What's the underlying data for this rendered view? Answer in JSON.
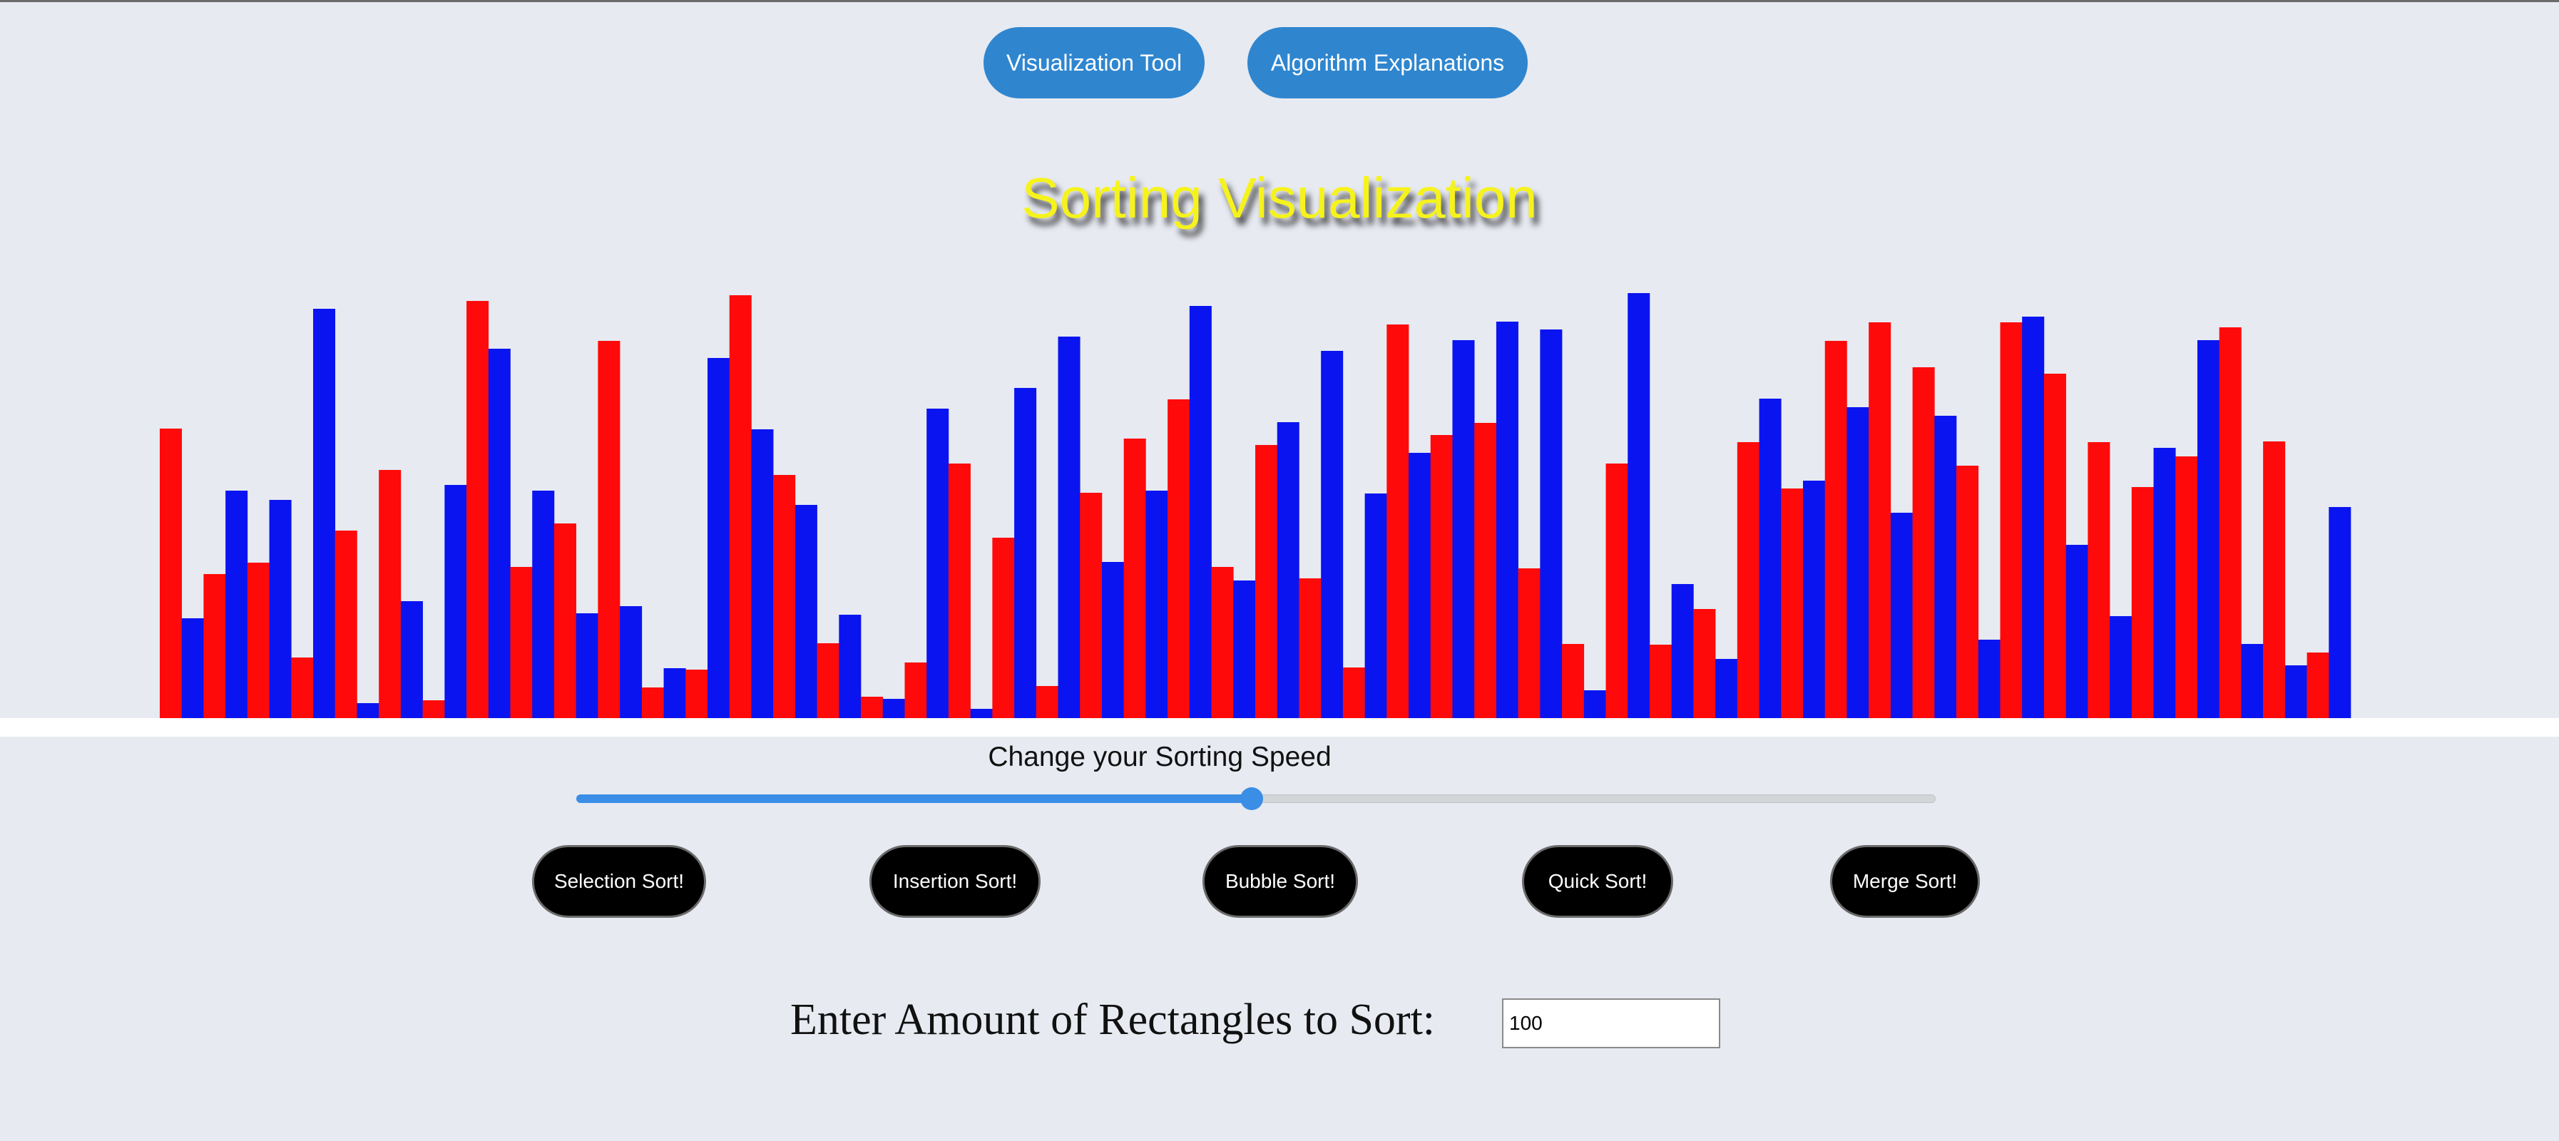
{
  "nav": {
    "visualization_tool": "Visualization Tool",
    "algorithm_explanations": "Algorithm Explanations"
  },
  "title": "Sorting Visualization",
  "speed": {
    "label": "Change your Sorting Speed",
    "value_fraction": 0.497
  },
  "algorithms": {
    "selection": "Selection Sort!",
    "insertion": "Insertion Sort!",
    "bubble": "Bubble Sort!",
    "quick": "Quick Sort!",
    "merge": "Merge Sort!"
  },
  "amount": {
    "label": "Enter Amount of Rectangles to Sort:",
    "value": "100"
  },
  "colors": {
    "background": "#e7eaf1",
    "bar_red": "#ff0a0a",
    "bar_blue": "#0a14f0",
    "button_blue": "#2f86cf",
    "title_yellow": "#f6f31c",
    "slider_blue": "#3a8ee6"
  },
  "chart_data": {
    "type": "bar",
    "colors_pattern": [
      "red",
      "blue"
    ],
    "values": [
      406,
      140,
      202,
      319,
      218,
      306,
      85,
      574,
      263,
      21,
      348,
      164,
      25,
      327,
      585,
      518,
      212,
      319,
      273,
      147,
      529,
      157,
      43,
      70,
      68,
      505,
      593,
      405,
      341,
      299,
      105,
      145,
      30,
      27,
      78,
      434,
      357,
      13,
      253,
      463,
      45,
      535,
      316,
      219,
      392,
      319,
      447,
      578,
      212,
      193,
      383,
      415,
      196,
      515,
      71,
      315,
      552,
      372,
      397,
      530,
      414,
      556,
      210,
      545,
      104,
      39,
      357,
      596,
      103,
      188,
      153,
      83,
      387,
      448,
      322,
      333,
      529,
      436,
      555,
      288,
      492,
      424,
      354,
      110,
      555,
      563,
      483,
      243,
      387,
      143,
      324,
      379,
      367,
      530,
      548,
      104,
      388,
      74,
      92,
      296
    ]
  }
}
